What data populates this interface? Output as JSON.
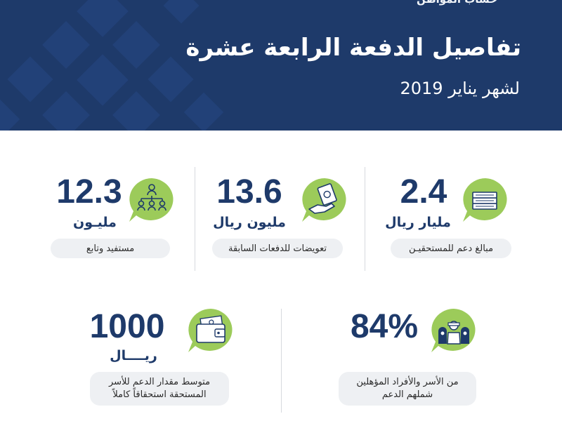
{
  "header": {
    "brand": "حساب المواطن",
    "title": "تفاصيل الدفعة الرابعة عشرة",
    "subtitle": "لشهر يناير 2019"
  },
  "stats": {
    "support_amount": {
      "value": "2.4",
      "unit": "مليار ريال",
      "label": "مبالغ دعم للمستحقيـن",
      "icon": "money-stack-icon"
    },
    "compensation": {
      "value": "13.6",
      "unit": "مليون ريال",
      "label": "تعويضات للدفعات السابقة",
      "icon": "hand-money-icon"
    },
    "beneficiaries": {
      "value": "12.3",
      "unit": "مليـون",
      "label": "مستفيد وتابع",
      "icon": "people-hierarchy-icon"
    },
    "eligible_percent": {
      "value": "84%",
      "label_line1": "من الأسر والأفراد المؤهلين",
      "label_line2": "شملهم الدعم",
      "icon": "family-icon"
    },
    "average_support": {
      "value": "1000",
      "unit": "ريــــال",
      "label_line1": "متوسط مقدار الدعم للأسر",
      "label_line2": "المستحقة استحقاقاً كاملاً",
      "icon": "wallet-icon"
    }
  },
  "colors": {
    "header_bg": "#1e3a6a",
    "accent_green": "#9ccb5a",
    "navy_text": "#1e3a6a",
    "pill_bg": "#eef0f3"
  }
}
